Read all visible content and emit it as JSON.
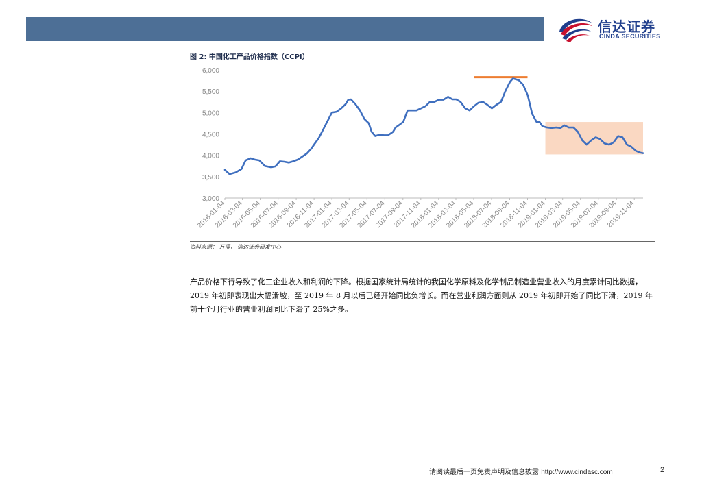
{
  "header": {
    "logo_cn": "信达证券",
    "logo_en": "CINDA SECURITIES",
    "bar_color": "#4d6f96"
  },
  "figure": {
    "title": "图 2: 中国化工产品价格指数（CCPI）",
    "source": "资料来源： 万得， 信达证券研发中心"
  },
  "chart_data": {
    "type": "line",
    "title": "",
    "xlabel": "",
    "ylabel": "",
    "ylim": [
      3000,
      6000
    ],
    "yticks": [
      3000,
      3500,
      4000,
      4500,
      5000,
      5500,
      6000
    ],
    "ytick_labels": [
      "3,000",
      "3,500",
      "4,000",
      "4,500",
      "5,000",
      "5,500",
      "6,000"
    ],
    "xlim": [
      "2016-01-04",
      "2019-12-04"
    ],
    "xtick_labels": [
      "2016-01-04",
      "2016-03-04",
      "2016-05-04",
      "2016-07-04",
      "2016-09-04",
      "2016-11-04",
      "2017-01-04",
      "2017-03-04",
      "2017-05-04",
      "2017-07-04",
      "2017-09-04",
      "2017-11-04",
      "2018-01-04",
      "2018-03-04",
      "2018-05-04",
      "2018-07-04",
      "2018-09-04",
      "2018-11-04",
      "2019-01-04",
      "2019-03-04",
      "2019-05-04",
      "2019-07-04",
      "2019-09-04",
      "2019-11-04"
    ],
    "grid": false,
    "series": [
      {
        "color": "#3f6fbf",
        "x": [
          "2016-01-04",
          "2016-01-20",
          "2016-02-10",
          "2016-03-01",
          "2016-03-15",
          "2016-04-01",
          "2016-04-15",
          "2016-05-01",
          "2016-05-20",
          "2016-06-10",
          "2016-06-25",
          "2016-07-10",
          "2016-07-25",
          "2016-08-10",
          "2016-08-25",
          "2016-09-10",
          "2016-09-25",
          "2016-10-10",
          "2016-10-25",
          "2016-11-05",
          "2016-11-20",
          "2016-12-05",
          "2016-12-20",
          "2017-01-04",
          "2017-01-20",
          "2017-02-05",
          "2017-02-20",
          "2017-03-01",
          "2017-03-10",
          "2017-03-25",
          "2017-04-10",
          "2017-04-25",
          "2017-05-10",
          "2017-05-20",
          "2017-06-01",
          "2017-06-15",
          "2017-07-01",
          "2017-07-15",
          "2017-08-01",
          "2017-08-10",
          "2017-08-20",
          "2017-09-05",
          "2017-09-20",
          "2017-10-05",
          "2017-10-20",
          "2017-11-05",
          "2017-11-20",
          "2017-12-05",
          "2017-12-20",
          "2018-01-05",
          "2018-01-20",
          "2018-02-05",
          "2018-02-20",
          "2018-03-05",
          "2018-03-20",
          "2018-04-05",
          "2018-04-20",
          "2018-05-05",
          "2018-05-20",
          "2018-06-05",
          "2018-06-20",
          "2018-07-05",
          "2018-07-20",
          "2018-08-05",
          "2018-08-20",
          "2018-09-05",
          "2018-09-15",
          "2018-09-25",
          "2018-10-05",
          "2018-10-20",
          "2018-11-05",
          "2018-11-20",
          "2018-12-05",
          "2018-12-15",
          "2018-12-25",
          "2019-01-10",
          "2019-01-25",
          "2019-02-10",
          "2019-02-25",
          "2019-03-10",
          "2019-03-25",
          "2019-04-10",
          "2019-04-25",
          "2019-05-10",
          "2019-05-25",
          "2019-06-10",
          "2019-06-25",
          "2019-07-10",
          "2019-07-25",
          "2019-08-10",
          "2019-08-25",
          "2019-09-10",
          "2019-09-25",
          "2019-10-10",
          "2019-10-25",
          "2019-11-10",
          "2019-11-25",
          "2019-12-04"
        ],
        "values": [
          3660,
          3560,
          3600,
          3680,
          3880,
          3930,
          3900,
          3880,
          3750,
          3720,
          3740,
          3860,
          3850,
          3830,
          3860,
          3900,
          3970,
          4040,
          4150,
          4260,
          4400,
          4600,
          4800,
          5000,
          5020,
          5100,
          5200,
          5300,
          5310,
          5200,
          5050,
          4850,
          4750,
          4550,
          4450,
          4480,
          4470,
          4470,
          4550,
          4650,
          4700,
          4780,
          5050,
          5050,
          5050,
          5100,
          5150,
          5250,
          5250,
          5300,
          5300,
          5370,
          5310,
          5310,
          5250,
          5100,
          5050,
          5150,
          5230,
          5250,
          5180,
          5100,
          5180,
          5250,
          5500,
          5720,
          5800,
          5780,
          5760,
          5650,
          5400,
          4970,
          4780,
          4780,
          4680,
          4650,
          4640,
          4650,
          4640,
          4700,
          4650,
          4650,
          4550,
          4350,
          4250,
          4350,
          4420,
          4380,
          4280,
          4250,
          4300,
          4450,
          4420,
          4250,
          4200,
          4100,
          4060,
          4050
        ]
      }
    ],
    "annotations": [
      {
        "type": "hline",
        "y": 5830,
        "x_start": "2018-05-04",
        "x_end": "2018-11-04",
        "color": "#ed7d31"
      },
      {
        "type": "rect",
        "x_start": "2019-01-04",
        "x_end": "2019-12-04",
        "y_start": 4020,
        "y_end": 4780,
        "color": "#f8cbad"
      }
    ]
  },
  "body": {
    "paragraph": "产品价格下行导致了化工企业收入和利润的下降。根据国家统计局统计的我国化学原料及化学制品制造业营业收入的月度累计同比数据，2019 年初即表现出大幅滑坡，至 2019 年 8 月以后已经开始同比负增长。而在营业利润方面则从 2019 年初即开始了同比下滑，2019 年前十个月行业的营业利润同比下滑了 25%之多。"
  },
  "footer": {
    "disclaimer": "请阅读最后一页免责声明及信息披露",
    "url": "http://www.cindasc.com",
    "page_number": "2"
  }
}
